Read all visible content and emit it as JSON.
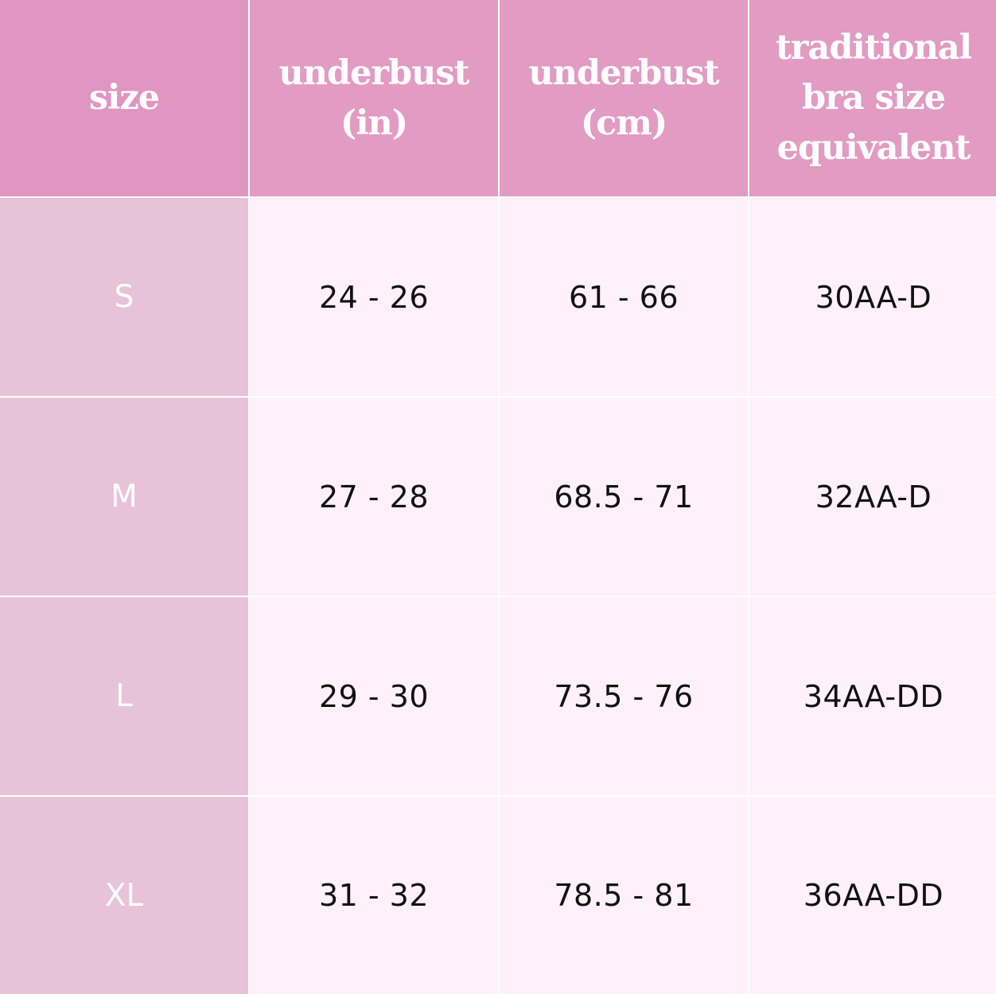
{
  "colors": {
    "header_bg": "#e29bc3",
    "size_column_bg": "#e8c2d8",
    "data_bg": "#fff1f7",
    "header_text": "#ffffff",
    "data_text": "#111111"
  },
  "table": {
    "headers": [
      "size",
      "underbust (in)",
      "underbust (cm)",
      "traditional bra size equivalent"
    ],
    "rows": [
      {
        "size": "S",
        "underbust_in": "24 - 26",
        "underbust_cm": "61 - 66",
        "bra_size": "30AA-D"
      },
      {
        "size": "M",
        "underbust_in": "27 - 28",
        "underbust_cm": "68.5 - 71",
        "bra_size": "32AA-D"
      },
      {
        "size": "L",
        "underbust_in": "29 - 30",
        "underbust_cm": "73.5 - 76",
        "bra_size": "34AA-DD"
      },
      {
        "size": "XL",
        "underbust_in": "31 - 32",
        "underbust_cm": "78.5 - 81",
        "bra_size": "36AA-DD"
      }
    ]
  }
}
